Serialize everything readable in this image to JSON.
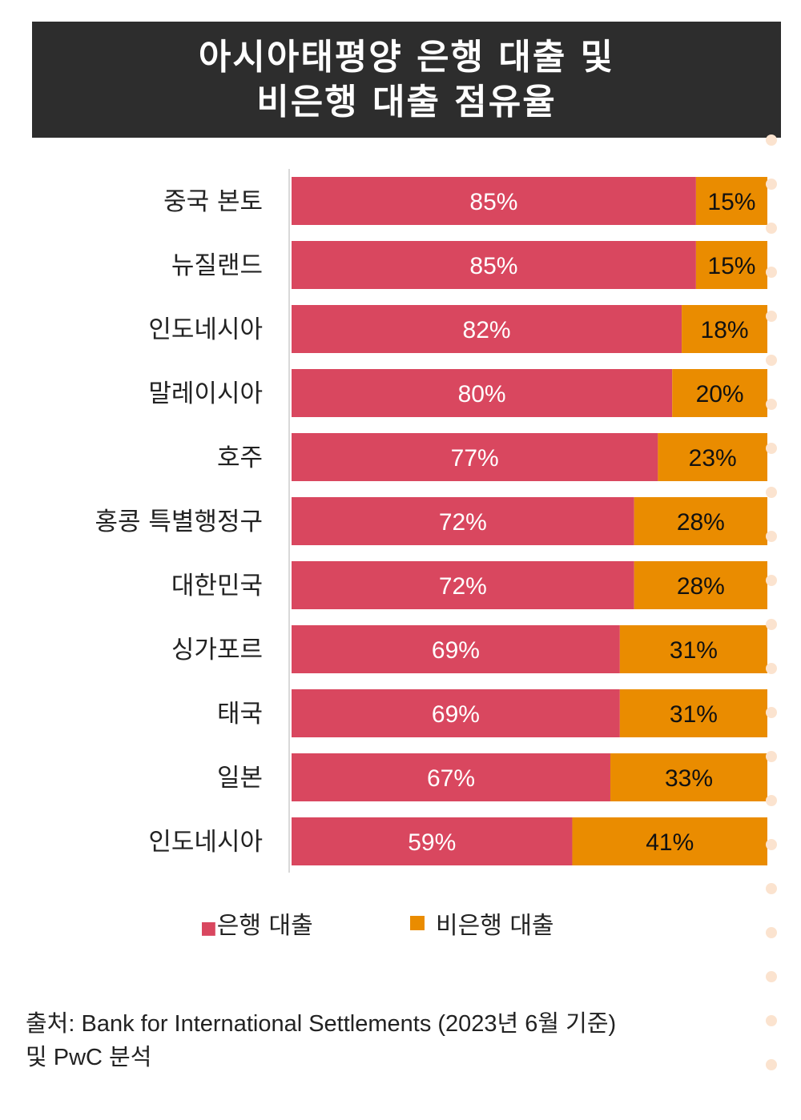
{
  "title": {
    "line1": "아시아태평양 은행 대출 및",
    "line2": "비은행 대출 점유율"
  },
  "chart_data": {
    "type": "bar",
    "stacked": true,
    "orientation": "horizontal",
    "categories": [
      "중국 본토",
      "뉴질랜드",
      "인도네시아",
      "말레이시아",
      "호주",
      "홍콩 특별행정구",
      "대한민국",
      "싱가포르",
      "태국",
      "일본",
      "인도네시아"
    ],
    "series": [
      {
        "name": "은행 대출",
        "color": "#d9475f",
        "values": [
          85,
          85,
          82,
          80,
          77,
          72,
          72,
          69,
          69,
          67,
          59
        ]
      },
      {
        "name": "비은행 대출",
        "color": "#ea8c00",
        "values": [
          15,
          15,
          18,
          20,
          23,
          28,
          28,
          31,
          31,
          33,
          41
        ]
      }
    ],
    "labels_bank": [
      "85%",
      "85%",
      "82%",
      "80%",
      "77%",
      "72%",
      "72%",
      "69%",
      "69%",
      "67%",
      "59%"
    ],
    "labels_nonbank": [
      "15%",
      "15%",
      "18%",
      "20%",
      "23%",
      "28%",
      "28%",
      "31%",
      "31%",
      "33%",
      "41%"
    ],
    "xlim": [
      0,
      100
    ],
    "legend_position": "bottom"
  },
  "legend": {
    "bank": "■은행 대출",
    "nonbank": "비은행 대출"
  },
  "source": {
    "line1": "출처: Bank for International Settlements (2023년 6월 기준)",
    "line2": "및 PwC 분석"
  },
  "colors": {
    "bank": "#d9475f",
    "nonbank": "#ea8c00",
    "title_bg": "#2d2d2d"
  }
}
